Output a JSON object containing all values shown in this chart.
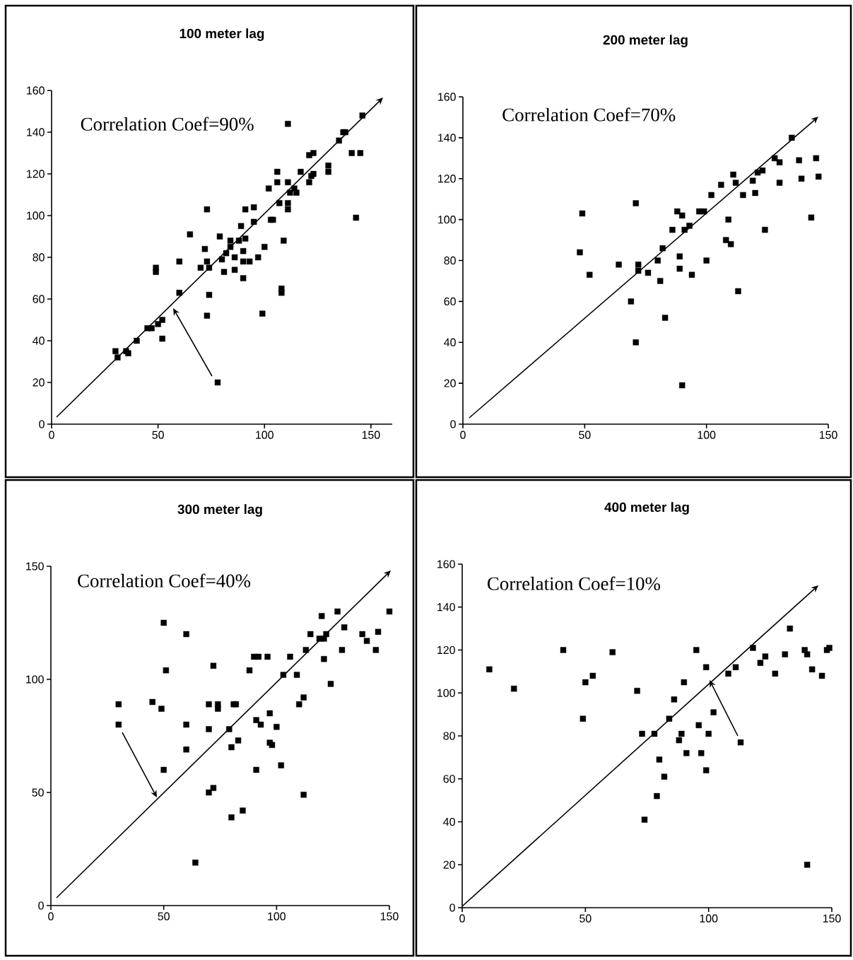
{
  "chart_data": [
    {
      "type": "scatter",
      "title": "100 meter lag",
      "annotations": [
        "Correlation Coef=90%"
      ],
      "xlim": [
        0,
        160
      ],
      "xticks": [
        0,
        50,
        100,
        150
      ],
      "ylim": [
        0,
        160
      ],
      "yticks": [
        0,
        20,
        40,
        60,
        80,
        100,
        120,
        140,
        160
      ],
      "marker": "square",
      "series": [
        {
          "color": "#000000",
          "x": [
            30,
            31,
            35,
            36,
            40,
            45,
            47,
            50,
            52,
            52,
            60,
            60,
            65,
            49,
            49,
            73,
            72,
            73,
            74,
            70,
            74,
            73,
            78,
            79,
            84,
            82,
            84,
            80,
            86,
            81,
            86,
            89,
            88,
            91,
            90,
            90,
            93,
            90,
            91,
            95,
            95,
            97,
            99,
            100,
            102,
            103,
            104,
            106,
            106,
            107,
            109,
            108,
            108,
            111,
            111,
            111,
            111,
            112,
            114,
            115,
            117,
            121,
            123,
            121,
            122,
            123,
            130,
            130,
            135,
            137,
            138,
            141,
            145,
            143,
            146
          ],
          "values": [
            35,
            32,
            35,
            34,
            40,
            46,
            46,
            48,
            50,
            41,
            63,
            78,
            91,
            75,
            73,
            103,
            84,
            78,
            75,
            75,
            62,
            52,
            20,
            90,
            88,
            82,
            85,
            79,
            80,
            73,
            74,
            95,
            88,
            89,
            83,
            78,
            78,
            70,
            103,
            104,
            97,
            80,
            53,
            85,
            113,
            98,
            98,
            121,
            116,
            106,
            88,
            65,
            63,
            144,
            116,
            106,
            103,
            111,
            113,
            111,
            121,
            129,
            130,
            116,
            119,
            120,
            124,
            121,
            136,
            140,
            140,
            130,
            130,
            99,
            148
          ]
        }
      ]
    },
    {
      "type": "scatter",
      "title": "200 meter lag",
      "annotations": [
        "Correlation Coef=70%"
      ],
      "xlim": [
        0,
        150
      ],
      "xticks": [
        0,
        50,
        100,
        150
      ],
      "ylim": [
        0,
        160
      ],
      "yticks": [
        0,
        20,
        40,
        60,
        80,
        100,
        120,
        140,
        160
      ],
      "marker": "square",
      "series": [
        {
          "color": "#000000",
          "x": [
            49,
            48,
            52,
            64,
            71,
            72,
            72,
            69,
            71,
            76,
            80,
            81,
            82,
            83,
            86,
            88,
            90,
            91,
            93,
            89,
            89,
            94,
            90,
            97,
            99,
            100,
            102,
            106,
            109,
            108,
            110,
            111,
            112,
            113,
            115,
            119,
            120,
            121,
            123,
            124,
            128,
            130,
            130,
            135,
            138,
            139,
            143,
            145,
            146
          ],
          "values": [
            103,
            84,
            73,
            78,
            108,
            78,
            75,
            60,
            40,
            74,
            80,
            70,
            86,
            52,
            95,
            104,
            102,
            95,
            97,
            82,
            76,
            73,
            19,
            104,
            104,
            80,
            112,
            117,
            100,
            90,
            88,
            122,
            118,
            65,
            112,
            119,
            113,
            123,
            124,
            95,
            130,
            128,
            118,
            140,
            129,
            120,
            101,
            130,
            121
          ]
        }
      ]
    },
    {
      "type": "scatter",
      "title": "300 meter lag",
      "annotations": [
        "Correlation Coef=40%"
      ],
      "xlim": [
        0,
        150
      ],
      "xticks": [
        0,
        50,
        100,
        150
      ],
      "ylim": [
        0,
        150
      ],
      "yticks": [
        0,
        50,
        100,
        150
      ],
      "marker": "square",
      "series": [
        {
          "color": "#000000",
          "x": [
            30,
            30,
            45,
            49,
            50,
            51,
            50,
            60,
            60,
            60,
            64,
            70,
            70,
            72,
            74,
            74,
            70,
            72,
            79,
            81,
            82,
            80,
            83,
            80,
            85,
            88,
            90,
            92,
            96,
            91,
            93,
            91,
            97,
            97,
            98,
            100,
            102,
            103,
            106,
            109,
            110,
            112,
            112,
            113,
            115,
            119,
            121,
            122,
            120,
            121,
            124,
            127,
            129,
            130,
            138,
            140,
            145,
            144,
            150
          ],
          "values": [
            89,
            80,
            90,
            87,
            125,
            104,
            60,
            80,
            69,
            120,
            19,
            89,
            78,
            106,
            89,
            87,
            50,
            52,
            78,
            89,
            89,
            70,
            73,
            39,
            42,
            104,
            110,
            110,
            110,
            82,
            80,
            60,
            85,
            72,
            71,
            79,
            62,
            102,
            110,
            102,
            89,
            92,
            49,
            113,
            120,
            118,
            118,
            120,
            128,
            109,
            98,
            130,
            113,
            123,
            120,
            117,
            121,
            113,
            130
          ]
        }
      ]
    },
    {
      "type": "scatter",
      "title": "400 meter lag",
      "annotations": [
        "Correlation Coef=10%"
      ],
      "xlim": [
        0,
        150
      ],
      "xticks": [
        0,
        50,
        100,
        150
      ],
      "ylim": [
        0,
        160
      ],
      "yticks": [
        0,
        20,
        40,
        60,
        80,
        100,
        120,
        140,
        160
      ],
      "marker": "square",
      "series": [
        {
          "color": "#000000",
          "x": [
            11,
            21,
            41,
            49,
            50,
            53,
            61,
            71,
            73,
            74,
            78,
            79,
            80,
            82,
            84,
            86,
            88,
            89,
            90,
            91,
            95,
            96,
            97,
            99,
            100,
            99,
            102,
            113,
            108,
            111,
            118,
            121,
            123,
            127,
            131,
            133,
            139,
            140,
            142,
            140,
            146,
            148,
            149
          ],
          "values": [
            111,
            102,
            120,
            88,
            105,
            108,
            119,
            101,
            81,
            41,
            81,
            52,
            69,
            61,
            88,
            97,
            78,
            81,
            105,
            72,
            120,
            85,
            72,
            112,
            81,
            64,
            91,
            77,
            109,
            112,
            121,
            114,
            117,
            109,
            118,
            130,
            120,
            118,
            111,
            20,
            108,
            120,
            121
          ]
        }
      ]
    }
  ]
}
